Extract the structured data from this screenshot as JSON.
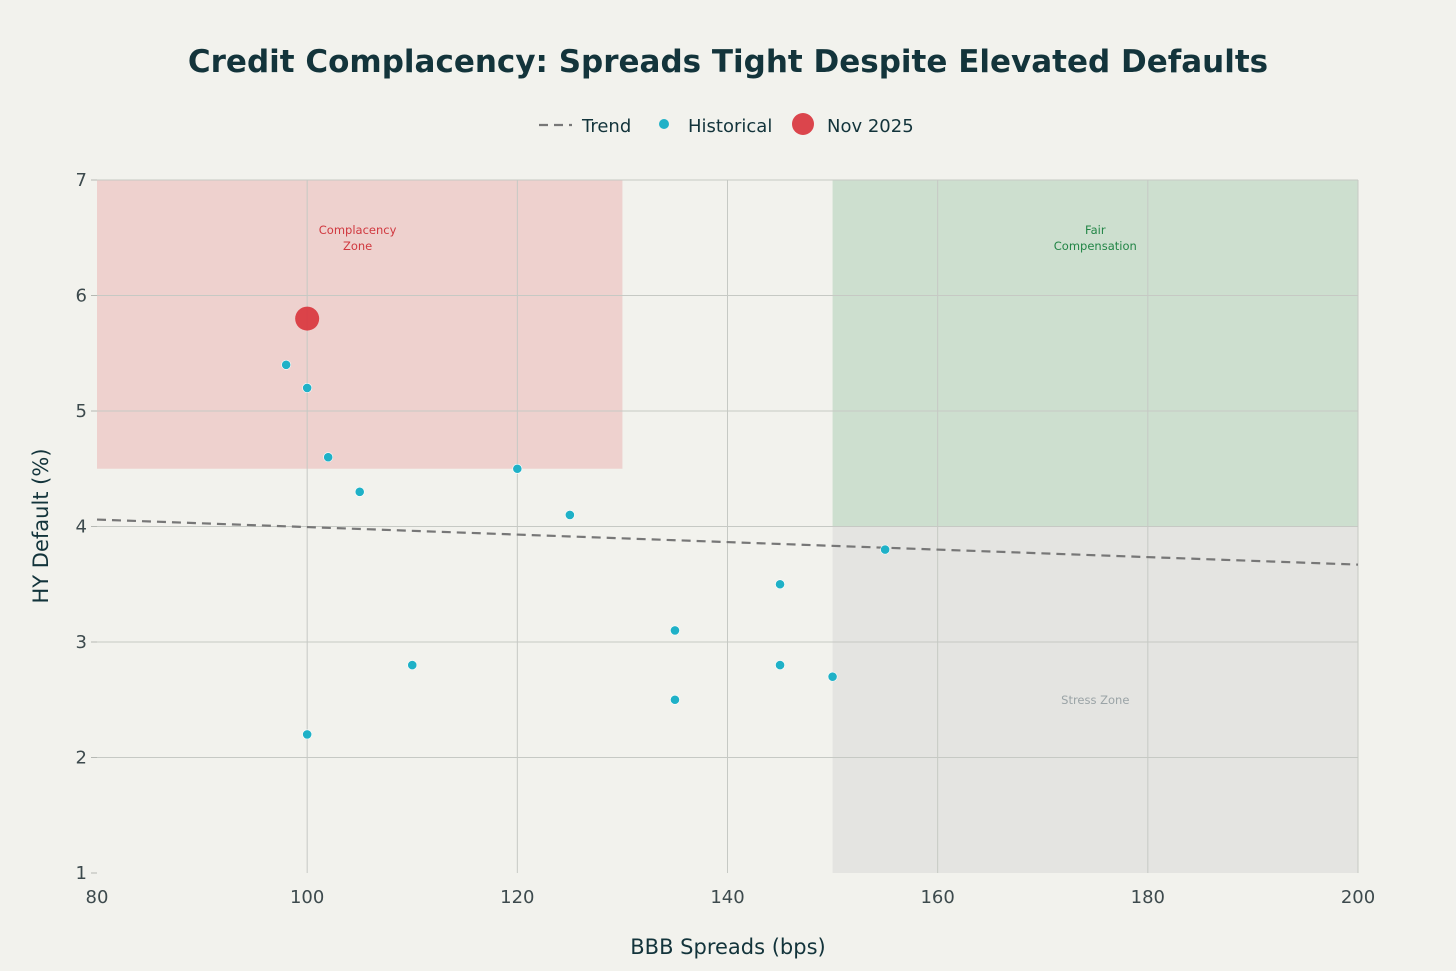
{
  "chart_data": {
    "type": "scatter",
    "title": "Credit Complacency: Spreads Tight Despite Elevated Defaults",
    "xlabel": "BBB Spreads (bps)",
    "ylabel": "HY Default (%)",
    "xlim": [
      80,
      200
    ],
    "ylim": [
      1,
      7
    ],
    "xticks": [
      80,
      100,
      120,
      140,
      160,
      180,
      200
    ],
    "yticks": [
      1,
      2,
      3,
      4,
      5,
      6,
      7
    ],
    "grid": true,
    "legend_position": "top-center",
    "legend": [
      {
        "name": "Trend",
        "style": "dashed-line",
        "color": "#777777"
      },
      {
        "name": "Historical",
        "style": "marker",
        "color": "#1fb1c7"
      },
      {
        "name": "Nov 2025",
        "style": "marker-large",
        "color": "#d9363e"
      }
    ],
    "zones": [
      {
        "label_lines": [
          "Complacency",
          "Zone"
        ],
        "x": [
          80,
          130
        ],
        "y": [
          4.5,
          7
        ],
        "fill": "#e8a8a8",
        "opacity": 0.45,
        "label_color": "#d0383f",
        "label_at": [
          104.8,
          6.5
        ]
      },
      {
        "label_lines": [
          "Fair",
          "Compensation"
        ],
        "x": [
          150,
          200
        ],
        "y": [
          4,
          7
        ],
        "fill": "#77b48a",
        "opacity": 0.3,
        "label_color": "#228546",
        "label_at": [
          175,
          6.5
        ]
      },
      {
        "label_lines": [
          "Stress Zone"
        ],
        "x": [
          150,
          200
        ],
        "y": [
          1,
          4
        ],
        "fill": "#cfcfcf",
        "opacity": 0.4,
        "label_color": "#9aa3a6",
        "label_at": [
          175,
          2.5
        ]
      }
    ],
    "series": [
      {
        "name": "Historical",
        "color": "#1fb1c7",
        "points": [
          {
            "x": 98,
            "y": 5.4
          },
          {
            "x": 100,
            "y": 5.2
          },
          {
            "x": 102,
            "y": 4.6
          },
          {
            "x": 105,
            "y": 4.3
          },
          {
            "x": 120,
            "y": 4.5
          },
          {
            "x": 125,
            "y": 4.1
          },
          {
            "x": 155,
            "y": 3.8
          },
          {
            "x": 145,
            "y": 3.5
          },
          {
            "x": 135,
            "y": 3.1
          },
          {
            "x": 145,
            "y": 2.8
          },
          {
            "x": 150,
            "y": 2.7
          },
          {
            "x": 110,
            "y": 2.8
          },
          {
            "x": 135,
            "y": 2.5
          },
          {
            "x": 100,
            "y": 2.2
          }
        ]
      },
      {
        "name": "Nov 2025",
        "color": "#d9363e",
        "points": [
          {
            "x": 100,
            "y": 5.8
          }
        ]
      }
    ],
    "trend": {
      "name": "Trend",
      "color": "#777777",
      "from": {
        "x": 80,
        "y": 4.06
      },
      "to": {
        "x": 200,
        "y": 3.67
      }
    }
  }
}
